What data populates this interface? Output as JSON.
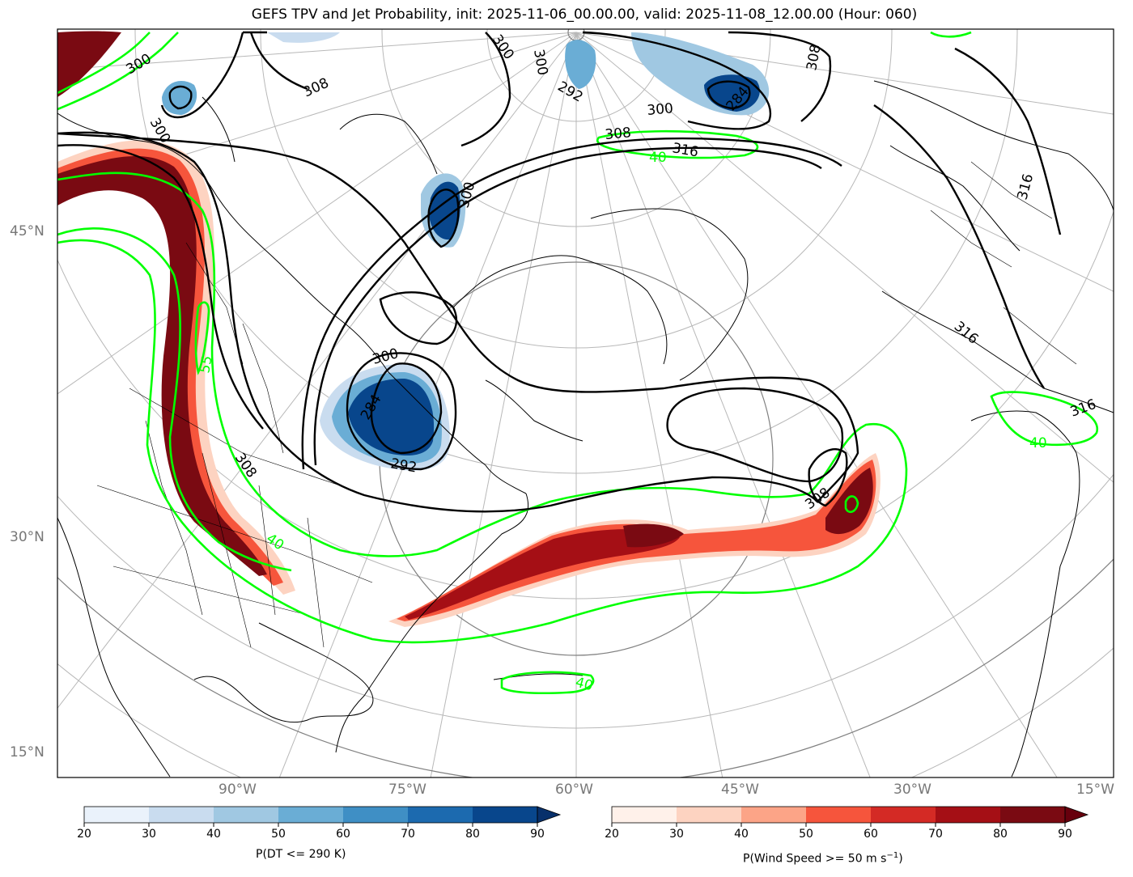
{
  "title": "GEFS TPV and Jet Probability, init: 2025-11-06_00.00.00, valid: 2025-11-08_12.00.00 (Hour: 060)",
  "lat_labels": [
    "45°N",
    "30°N",
    "15°N"
  ],
  "lon_labels": [
    "90°W",
    "75°W",
    "60°W",
    "45°W",
    "30°W",
    "15°W"
  ],
  "contour_labels": {
    "black": [
      "300",
      "300",
      "308",
      "300",
      "300",
      "292",
      "300",
      "308",
      "284",
      "316",
      "308",
      "300",
      "300",
      "284",
      "292",
      "308",
      "308",
      "316",
      "316",
      "316"
    ],
    "green": [
      "40",
      "55",
      "40",
      "40",
      "40"
    ]
  },
  "colorbars": [
    {
      "label": "P(DT <= 290 K)",
      "ticks": [
        "20",
        "30",
        "40",
        "50",
        "60",
        "70",
        "80",
        "90"
      ],
      "colors": [
        "#eaf2fb",
        "#c9dcef",
        "#a0c8e2",
        "#6aadd5",
        "#3f8fc5",
        "#1c6aaf",
        "#08468c"
      ],
      "extend_color": "#08306b"
    },
    {
      "label_main": "P(Wind Speed >= 50 m s",
      "label_sup": "−1",
      "label_end": ")",
      "ticks": [
        "20",
        "30",
        "40",
        "50",
        "60",
        "70",
        "80",
        "90"
      ],
      "colors": [
        "#fff1ea",
        "#fdd3c1",
        "#fca487",
        "#f6553c",
        "#d42a25",
        "#a50f15",
        "#7a0a12"
      ],
      "extend_color": "#67000d"
    }
  ]
}
